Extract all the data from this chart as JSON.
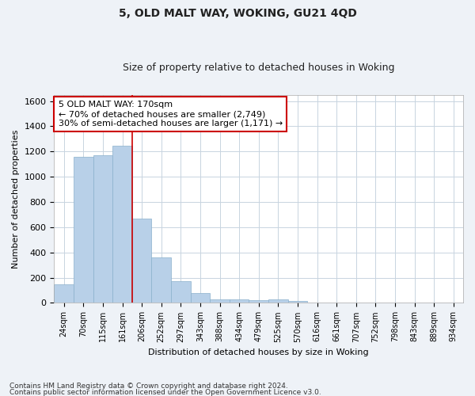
{
  "title1": "5, OLD MALT WAY, WOKING, GU21 4QD",
  "title2": "Size of property relative to detached houses in Woking",
  "xlabel": "Distribution of detached houses by size in Woking",
  "ylabel": "Number of detached properties",
  "categories": [
    "24sqm",
    "70sqm",
    "115sqm",
    "161sqm",
    "206sqm",
    "252sqm",
    "297sqm",
    "343sqm",
    "388sqm",
    "434sqm",
    "479sqm",
    "525sqm",
    "570sqm",
    "616sqm",
    "661sqm",
    "707sqm",
    "752sqm",
    "798sqm",
    "843sqm",
    "889sqm",
    "934sqm"
  ],
  "values": [
    150,
    1160,
    1170,
    1245,
    670,
    360,
    170,
    80,
    30,
    25,
    20,
    25,
    15,
    0,
    0,
    0,
    0,
    0,
    0,
    0,
    0
  ],
  "bar_color": "#b8d0e8",
  "bar_edge_color": "#8ab0cc",
  "property_line_x": 3.5,
  "property_line_color": "#cc0000",
  "annotation_line1": "5 OLD MALT WAY: 170sqm",
  "annotation_line2": "← 70% of detached houses are smaller (2,749)",
  "annotation_line3": "30% of semi-detached houses are larger (1,171) →",
  "annotation_box_color": "#ffffff",
  "annotation_box_edge": "#cc0000",
  "ylim": [
    0,
    1650
  ],
  "yticks": [
    0,
    200,
    400,
    600,
    800,
    1000,
    1200,
    1400,
    1600
  ],
  "footnote1": "Contains HM Land Registry data © Crown copyright and database right 2024.",
  "footnote2": "Contains public sector information licensed under the Open Government Licence v3.0.",
  "bg_color": "#eef2f7",
  "plot_bg_color": "#ffffff",
  "grid_color": "#c8d4e0",
  "title1_fontsize": 10,
  "title2_fontsize": 9,
  "xlabel_fontsize": 8,
  "ylabel_fontsize": 8,
  "tick_fontsize": 8,
  "annot_fontsize": 8
}
